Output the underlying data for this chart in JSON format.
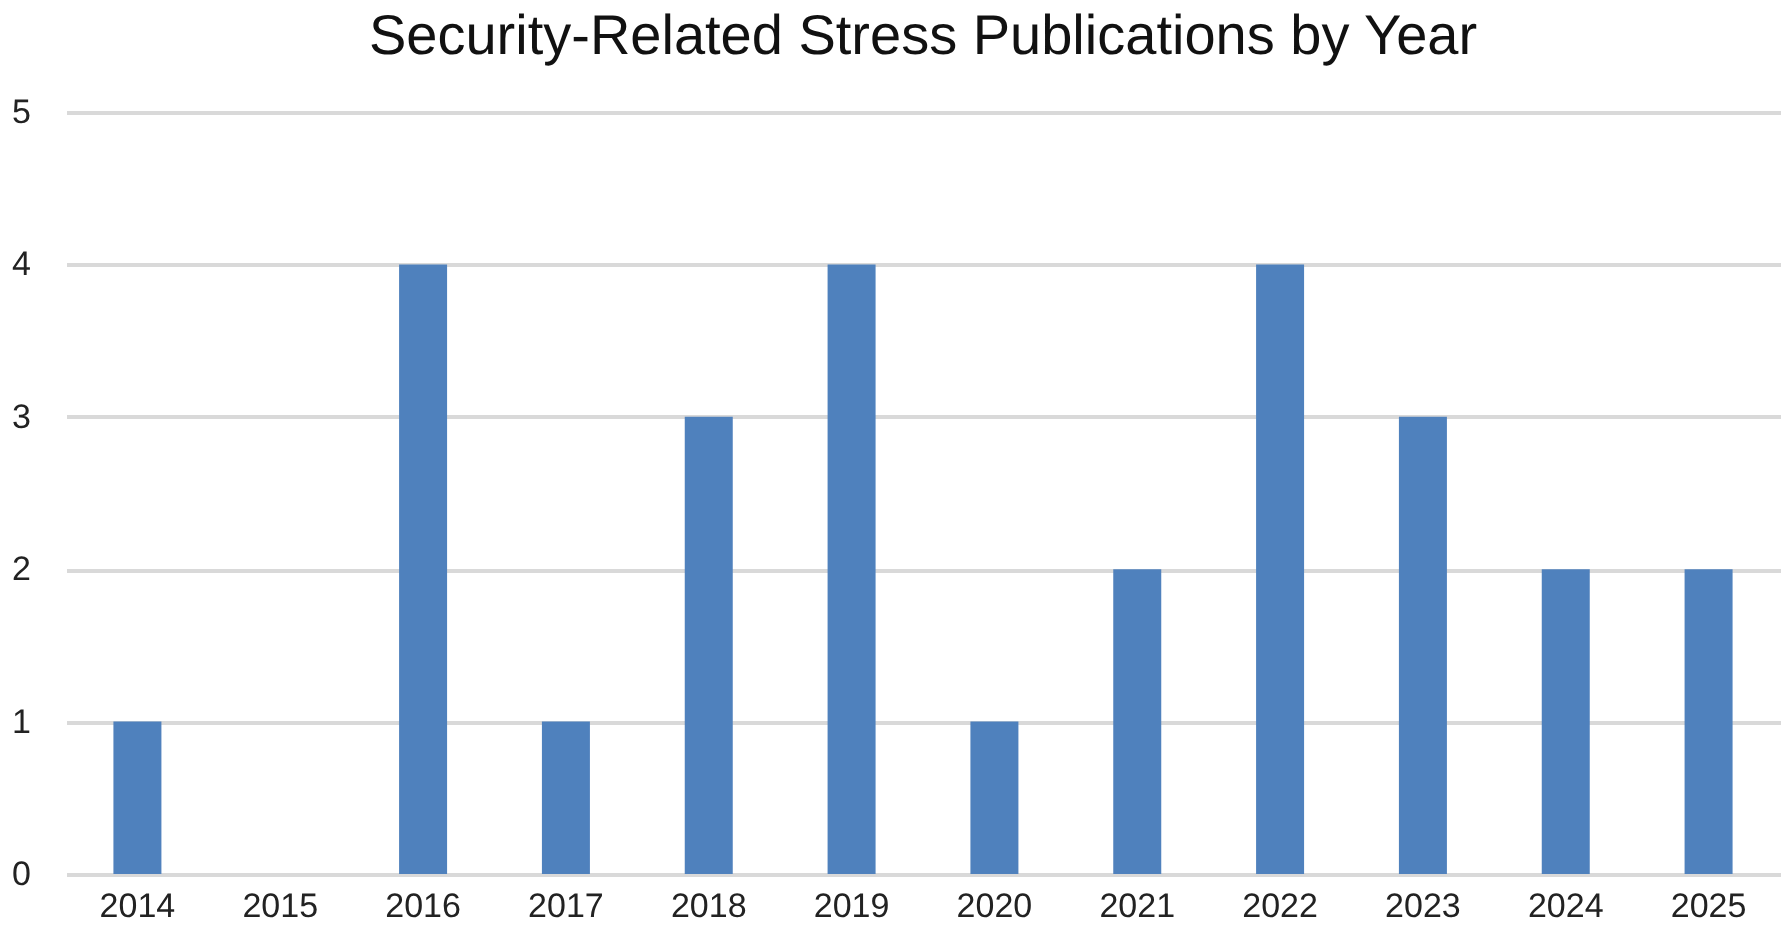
{
  "chart_data": {
    "type": "bar",
    "title": "Security-Related Stress Publications by Year",
    "categories": [
      "2014",
      "2015",
      "2016",
      "2017",
      "2018",
      "2019",
      "2020",
      "2021",
      "2022",
      "2023",
      "2024",
      "2025"
    ],
    "values": [
      1,
      0,
      4,
      1,
      3,
      4,
      1,
      2,
      4,
      3,
      2,
      2
    ],
    "color": "#4f81bd",
    "ylim": [
      0,
      5
    ],
    "yticks": [
      0,
      1,
      2,
      3,
      4,
      5
    ],
    "grid": "y"
  }
}
